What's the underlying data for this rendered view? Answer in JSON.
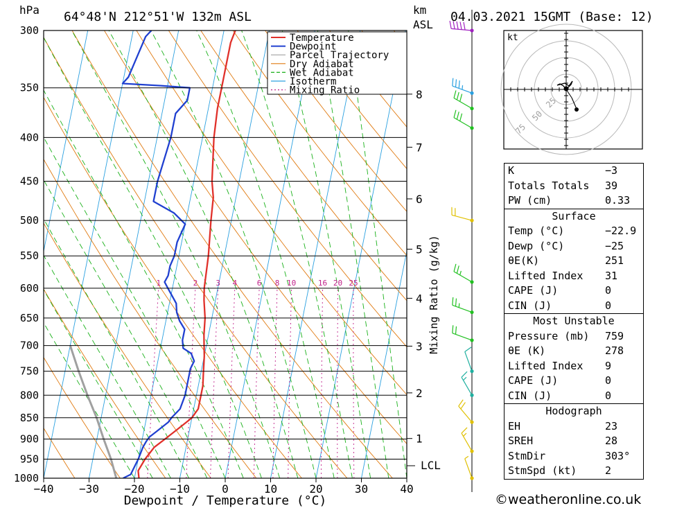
{
  "header": {
    "pressure_unit": "hPa",
    "location": "64°48'N  212°51'W  132m  ASL",
    "height_unit_line1": "km",
    "height_unit_line2": "ASL",
    "datetime": "04.03.2021  15GMT  (Base: 12)"
  },
  "chart_data": {
    "type": "line",
    "xlabel": "Dewpoint / Temperature (°C)",
    "ylabel": "hPa",
    "xlim": [
      -40,
      40
    ],
    "ylim": [
      1000,
      300
    ],
    "y_scale": "log",
    "x_ticks": [
      "−40",
      "−30",
      "−20",
      "−10",
      "0",
      "10",
      "20",
      "30",
      "40"
    ],
    "pressure_levels": [
      300,
      350,
      400,
      450,
      500,
      550,
      600,
      650,
      700,
      750,
      800,
      850,
      900,
      950,
      1000
    ],
    "height_ticks_km": [
      "8",
      "7",
      "6",
      "5",
      "4",
      "3",
      "2",
      "1"
    ],
    "lcl_label": "LCL",
    "mixing_ratio_label": "Mixing Ratio (g/kg)",
    "mixing_ratio_values": [
      "1",
      "2",
      "3",
      "4",
      "6",
      "8",
      "10",
      "16",
      "20",
      "25"
    ],
    "grid": true,
    "legend": {
      "placement": "top-right",
      "entries": [
        {
          "name": "Temperature",
          "color": "#e0302a"
        },
        {
          "name": "Dewpoint",
          "color": "#2040d0"
        },
        {
          "name": "Parcel Trajectory",
          "color": "#a0a0a0"
        },
        {
          "name": "Dry Adiabat",
          "color": "#e07a10"
        },
        {
          "name": "Wet Adiabat",
          "color": "#18b018"
        },
        {
          "name": "Isotherm",
          "color": "#2aa0e0"
        },
        {
          "name": "Mixing Ratio",
          "color": "#c0208a"
        }
      ]
    },
    "series": [
      {
        "name": "Temperature",
        "points": [
          [
            1000,
            -19
          ],
          [
            980,
            -19.5
          ],
          [
            950,
            -18.5
          ],
          [
            920,
            -17
          ],
          [
            900,
            -15
          ],
          [
            880,
            -13
          ],
          [
            860,
            -11
          ],
          [
            850,
            -10
          ],
          [
            830,
            -9
          ],
          [
            800,
            -9
          ],
          [
            780,
            -9
          ],
          [
            750,
            -9.5
          ],
          [
            720,
            -10
          ],
          [
            700,
            -10.5
          ],
          [
            680,
            -11
          ],
          [
            650,
            -11.5
          ],
          [
            620,
            -12.5
          ],
          [
            600,
            -13
          ],
          [
            550,
            -13.5
          ],
          [
            500,
            -14.5
          ],
          [
            470,
            -15
          ],
          [
            450,
            -16
          ],
          [
            400,
            -17.5
          ],
          [
            370,
            -18
          ],
          [
            350,
            -18
          ],
          [
            330,
            -18
          ],
          [
            310,
            -18
          ],
          [
            300,
            -17.5
          ]
        ]
      },
      {
        "name": "Dewpoint",
        "points": [
          [
            1000,
            -22.5
          ],
          [
            990,
            -21
          ],
          [
            950,
            -20
          ],
          [
            920,
            -19.5
          ],
          [
            905,
            -19
          ],
          [
            895,
            -18.5
          ],
          [
            880,
            -17
          ],
          [
            860,
            -15
          ],
          [
            850,
            -14.5
          ],
          [
            830,
            -13
          ],
          [
            800,
            -12.5
          ],
          [
            780,
            -12.5
          ],
          [
            760,
            -12.5
          ],
          [
            745,
            -12.5
          ],
          [
            730,
            -12
          ],
          [
            715,
            -13
          ],
          [
            705,
            -15
          ],
          [
            690,
            -15.5
          ],
          [
            670,
            -15.5
          ],
          [
            655,
            -17
          ],
          [
            640,
            -18
          ],
          [
            625,
            -18.5
          ],
          [
            600,
            -21
          ],
          [
            590,
            -22
          ],
          [
            580,
            -21.5
          ],
          [
            565,
            -21.5
          ],
          [
            550,
            -21
          ],
          [
            530,
            -21
          ],
          [
            505,
            -20
          ],
          [
            490,
            -23
          ],
          [
            475,
            -28
          ],
          [
            450,
            -28
          ],
          [
            400,
            -27
          ],
          [
            375,
            -27
          ],
          [
            362,
            -25
          ],
          [
            350,
            -25
          ],
          [
            348,
            -31.5
          ],
          [
            346,
            -40
          ],
          [
            340,
            -39
          ],
          [
            305,
            -37
          ],
          [
            300,
            -36
          ]
        ]
      },
      {
        "name": "Parcel Trajectory",
        "points": [
          [
            1000,
            -24
          ],
          [
            950,
            -26
          ],
          [
            900,
            -28.5
          ],
          [
            850,
            -31
          ],
          [
            800,
            -34
          ],
          [
            750,
            -37
          ],
          [
            700,
            -40
          ]
        ]
      }
    ],
    "wind_barbs": [
      {
        "p": 1000,
        "color": "#e0c000",
        "dir": 340,
        "kt": 5
      },
      {
        "p": 930,
        "color": "#e0c000",
        "dir": 330,
        "kt": 15
      },
      {
        "p": 860,
        "color": "#e0c000",
        "dir": 320,
        "kt": 20
      },
      {
        "p": 800,
        "color": "#20b0a0",
        "dir": 330,
        "kt": 15
      },
      {
        "p": 750,
        "color": "#20b0a0",
        "dir": 340,
        "kt": 10
      },
      {
        "p": 690,
        "color": "#20c020",
        "dir": 290,
        "kt": 20
      },
      {
        "p": 640,
        "color": "#20c020",
        "dir": 290,
        "kt": 25
      },
      {
        "p": 590,
        "color": "#20c020",
        "dir": 300,
        "kt": 25
      },
      {
        "p": 500,
        "color": "#e0c000",
        "dir": 285,
        "kt": 20
      },
      {
        "p": 390,
        "color": "#20c020",
        "dir": 300,
        "kt": 30
      },
      {
        "p": 370,
        "color": "#20c020",
        "dir": 300,
        "kt": 30
      },
      {
        "p": 355,
        "color": "#2aa0e0",
        "dir": 290,
        "kt": 35
      },
      {
        "p": 300,
        "color": "#a020c0",
        "dir": 275,
        "kt": 50
      }
    ]
  },
  "hodograph": {
    "unit_label": "kt",
    "ring_labels": [
      "25",
      "50",
      "75"
    ]
  },
  "indices": [
    {
      "label": "K",
      "value": "−3"
    },
    {
      "label": "Totals Totals",
      "value": "39"
    },
    {
      "label": "PW (cm)",
      "value": "0.33"
    }
  ],
  "surface": {
    "title": "Surface",
    "rows": [
      {
        "label": "Temp (°C)",
        "value": "−22.9"
      },
      {
        "label": "Dewp (°C)",
        "value": "−25"
      },
      {
        "label": "θE(K)",
        "value": "251"
      },
      {
        "label": "Lifted Index",
        "value": "31"
      },
      {
        "label": "CAPE (J)",
        "value": "0"
      },
      {
        "label": "CIN (J)",
        "value": "0"
      }
    ]
  },
  "most_unstable": {
    "title": "Most Unstable",
    "rows": [
      {
        "label": "Pressure (mb)",
        "value": "759"
      },
      {
        "label": "θE (K)",
        "value": "278"
      },
      {
        "label": "Lifted Index",
        "value": "9"
      },
      {
        "label": "CAPE (J)",
        "value": "0"
      },
      {
        "label": "CIN (J)",
        "value": "0"
      }
    ]
  },
  "hodograph_stats": {
    "title": "Hodograph",
    "rows": [
      {
        "label": "EH",
        "value": "23"
      },
      {
        "label": "SREH",
        "value": "28"
      },
      {
        "label": "StmDir",
        "value": "303°"
      },
      {
        "label": "StmSpd (kt)",
        "value": "2"
      }
    ]
  },
  "footer": {
    "credit": "©weatheronline.co.uk"
  }
}
